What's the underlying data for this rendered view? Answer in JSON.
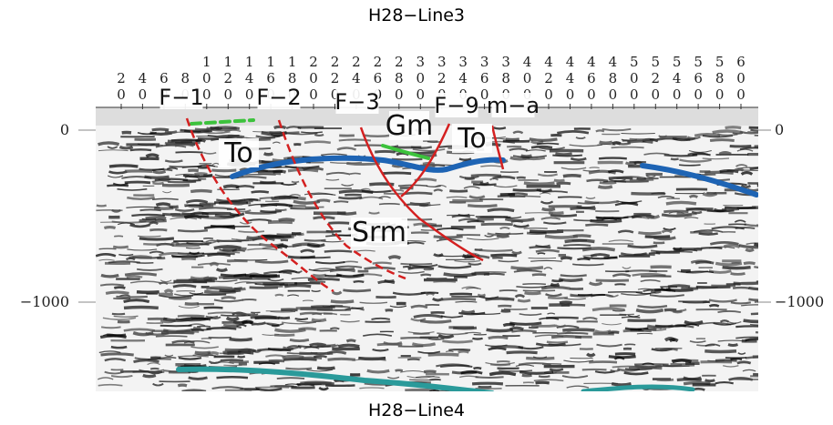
{
  "header": {
    "title": "H28−Line3"
  },
  "footer": {
    "title": "H28−Line4"
  },
  "x_ticks": [
    "20",
    "40",
    "60",
    "80",
    "100",
    "120",
    "140",
    "160",
    "180",
    "200",
    "220",
    "240",
    "260",
    "280",
    "300",
    "320",
    "340",
    "360",
    "380",
    "400",
    "420",
    "440",
    "460",
    "480",
    "500",
    "520",
    "540",
    "560",
    "580",
    "600"
  ],
  "y_ticks": {
    "left": [
      "0",
      "−1000"
    ],
    "right": [
      "0",
      "−1000"
    ]
  },
  "fault_labels": [
    "F−1",
    "F−2",
    "F−3",
    "F−9",
    "m−a"
  ],
  "unit_labels": [
    "To",
    "Gm",
    "To",
    "Srm"
  ],
  "colors": {
    "fault": "#d42020",
    "green_horizon": "#3cc23c",
    "blue_horizon": "#1e64b4",
    "teal_horizon": "#2a9a9a"
  }
}
